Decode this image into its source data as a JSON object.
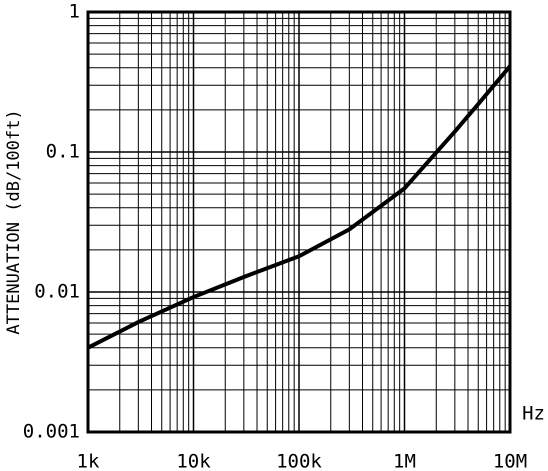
{
  "chart_data": {
    "type": "line",
    "xlabel": "Hz",
    "ylabel": "ATTENUATION (dB/100ft)",
    "x": [
      1000,
      3000,
      10000,
      30000,
      100000,
      300000,
      1000000,
      3000000,
      5000000,
      10000000
    ],
    "series": [
      {
        "color": "#000000",
        "values": [
          0.004,
          0.0061,
          0.0092,
          0.0128,
          0.018,
          0.028,
          0.055,
          0.14,
          0.22,
          0.41
        ]
      }
    ],
    "xscale": "log",
    "yscale": "log",
    "grid": true,
    "xlim": [
      1000,
      10000000
    ],
    "xticks": [
      {
        "value": 1000,
        "label": "1k"
      },
      {
        "value": 10000,
        "label": "10k"
      },
      {
        "value": 100000,
        "label": "100k"
      },
      {
        "value": 1000000,
        "label": "1M"
      },
      {
        "value": 10000000,
        "label": "10M"
      }
    ],
    "ylim": [
      0.001,
      1
    ],
    "yticks": [
      0.001,
      0.01,
      0.1,
      1
    ]
  }
}
